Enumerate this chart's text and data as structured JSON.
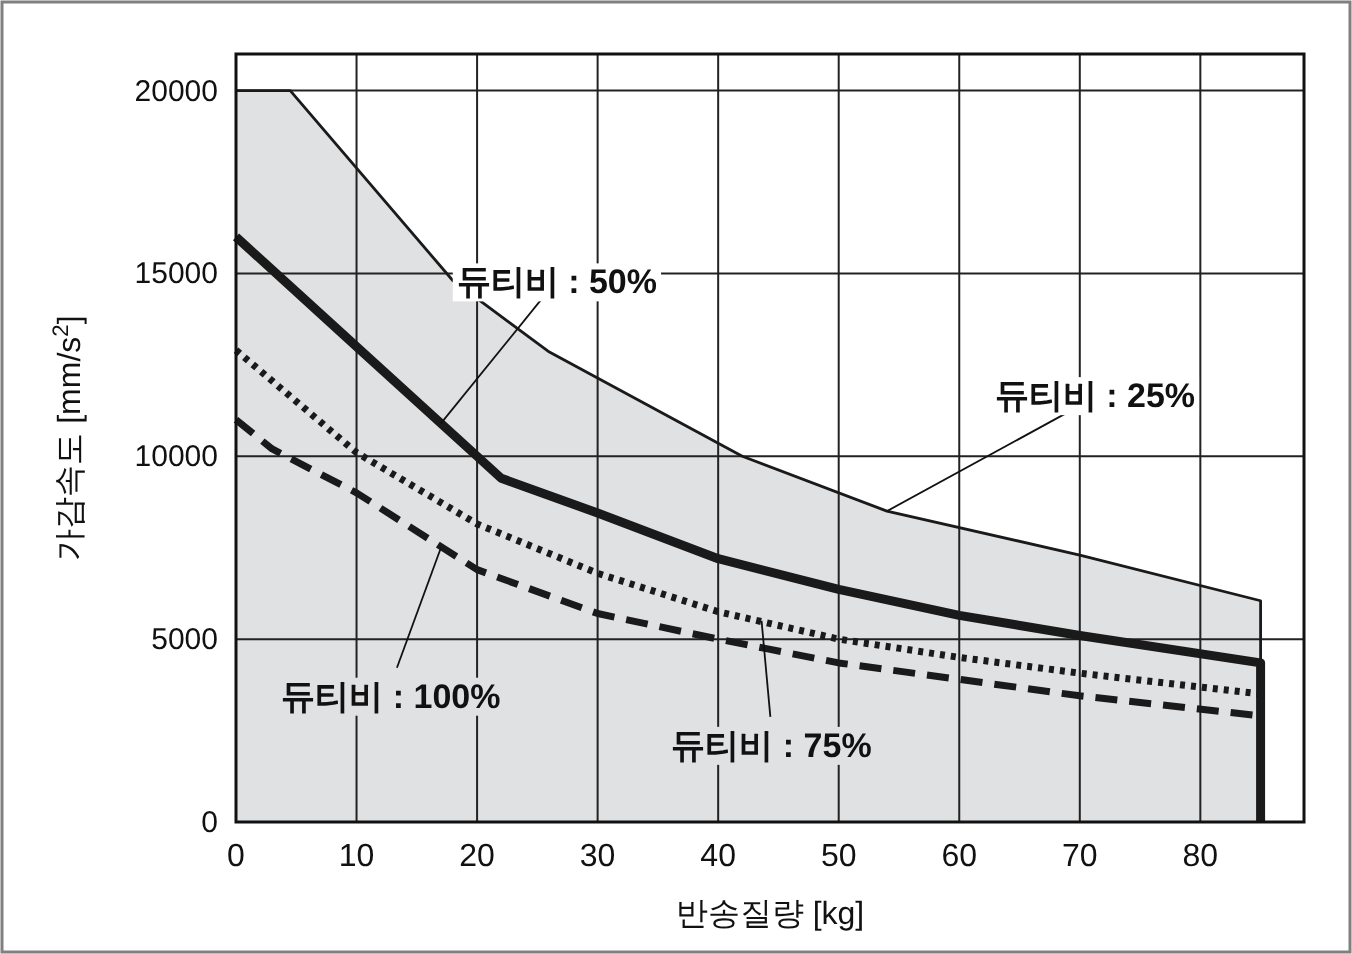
{
  "chart_data": {
    "type": "line",
    "xlabel": "반송질량 [kg]",
    "ylabel": "가감속도 [mm/s$^{2}$]",
    "xlim": [
      0,
      88.6
    ],
    "ylim": [
      0,
      21000
    ],
    "xticks": [
      0,
      10,
      20,
      30,
      40,
      50,
      60,
      70,
      80
    ],
    "yticks": [
      0,
      5000,
      10000,
      15000,
      20000
    ],
    "grid": true,
    "series": [
      {
        "type": "area",
        "color": "#e0e1e3",
        "x": [
          0,
          4.5,
          18,
          26,
          42,
          54,
          70,
          85
        ],
        "values": [
          20000,
          20000,
          14800,
          12850,
          10000,
          8500,
          7300,
          6050
        ]
      },
      {
        "color": "#1a1a1a",
        "line_style": "solid",
        "x": [
          0,
          10,
          20,
          22,
          30,
          40,
          50,
          60,
          70,
          85,
          85
        ],
        "values": [
          16000,
          13000,
          10000,
          9400,
          8450,
          7200,
          6360,
          5650,
          5100,
          4350,
          0
        ]
      },
      {
        "color": "#1a1a1a",
        "line_style": "dotted",
        "x": [
          0,
          10,
          20,
          30,
          40,
          50,
          60,
          70,
          85
        ],
        "values": [
          12900,
          10100,
          8150,
          6800,
          5750,
          5000,
          4500,
          4070,
          3500
        ]
      },
      {
        "color": "#1a1a1a",
        "line_style": "dashed",
        "x": [
          0,
          3,
          10,
          20,
          30,
          40,
          50,
          60,
          70,
          85
        ],
        "values": [
          11000,
          10200,
          9000,
          6900,
          5700,
          5000,
          4350,
          3900,
          3450,
          2900
        ]
      }
    ],
    "annotations": [
      {
        "text": "듀티비 : 50%",
        "x": 17,
        "y": 10900
      },
      {
        "text": "듀티비 : 25%",
        "x": 54,
        "y": 8500
      },
      {
        "text": "듀티비 : 100%",
        "x": 17,
        "y": 7500
      },
      {
        "text": "듀티비 : 75%",
        "x": 43.6,
        "y": 5500
      }
    ]
  }
}
